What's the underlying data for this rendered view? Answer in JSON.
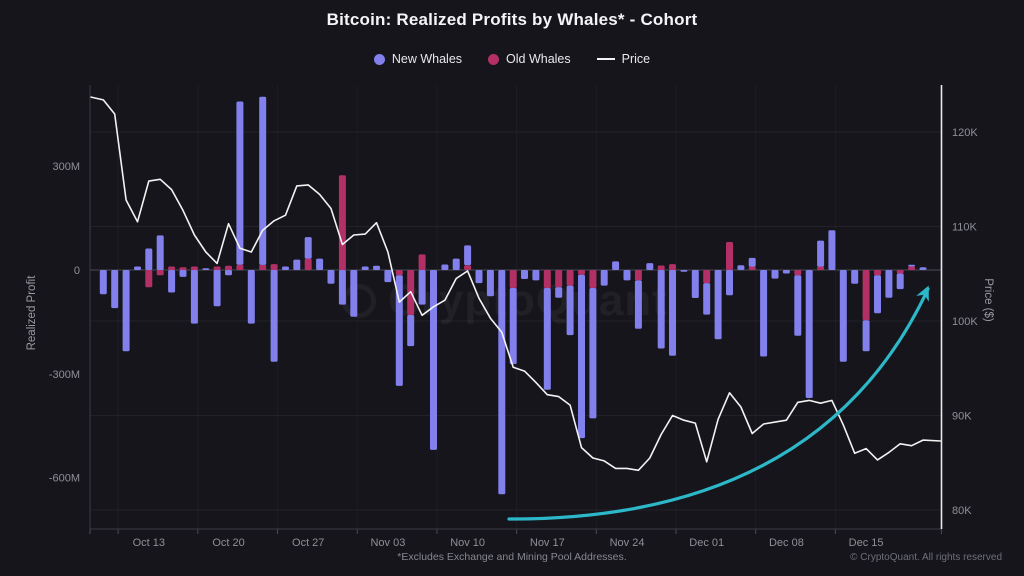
{
  "title": "Bitcoin: Realized Profits by Whales* - Cohort",
  "watermark": "CryptoQuant",
  "footnote": "*Excludes Exchange and Mining Pool Addresses.",
  "copyright": "© CryptoQuant. All rights reserved",
  "legend": {
    "items": [
      {
        "label": "New Whales",
        "color": "#8280ec",
        "type": "circle"
      },
      {
        "label": "Old Whales",
        "color": "#b23066",
        "type": "circle"
      },
      {
        "label": "Price",
        "color": "#f2f2f2",
        "type": "line"
      }
    ]
  },
  "colors": {
    "background": "#15151b",
    "new_whales": "#8280ec",
    "old_whales": "#b23066",
    "price_line": "#f2f2f2",
    "annotation_arrow": "#2cb8c8",
    "right_axis_line": "#e6e6ec",
    "axis_line": "#3a3a44",
    "zero_line": "#4a4a54",
    "tick_text": "#8f8f97",
    "gridline": "rgba(255,255,255,0.055)"
  },
  "chart_data": {
    "type": "bar+line",
    "title": "Bitcoin: Realized Profits by Whales* - Cohort",
    "units": {
      "bars": "USD (M = millions)",
      "line": "USD (K = thousands)"
    },
    "stack_order": "old-whales-nearest-zero",
    "grid": "horizontal-faint",
    "legend_position": "top-center",
    "y_left": {
      "label": "Realized Profit",
      "tick_labels": [
        "300M",
        "0",
        "-300M",
        "-600M"
      ],
      "tick_values": [
        300,
        0,
        -300,
        -600
      ],
      "range": [
        -720,
        560
      ]
    },
    "y_right": {
      "label": "Price ($)",
      "tick_labels": [
        "120K",
        "110K",
        "100K",
        "90K",
        "80K"
      ],
      "tick_values": [
        120,
        110,
        100,
        90,
        80
      ],
      "range": [
        78,
        125
      ]
    },
    "x_ticks": {
      "labels": [
        "Oct 13",
        "Oct 20",
        "Oct 27",
        "Nov 03",
        "Nov 10",
        "Nov 17",
        "Nov 24",
        "Dec 01",
        "Dec 08",
        "Dec 15"
      ],
      "day_indices": [
        4,
        11,
        18,
        25,
        32,
        39,
        46,
        53,
        60,
        67
      ]
    },
    "dates": [
      "Oct 09",
      "Oct 10",
      "Oct 11",
      "Oct 12",
      "Oct 13",
      "Oct 14",
      "Oct 15",
      "Oct 16",
      "Oct 17",
      "Oct 18",
      "Oct 19",
      "Oct 20",
      "Oct 21",
      "Oct 22",
      "Oct 23",
      "Oct 24",
      "Oct 25",
      "Oct 26",
      "Oct 27",
      "Oct 28",
      "Oct 29",
      "Oct 30",
      "Oct 31",
      "Nov 01",
      "Nov 02",
      "Nov 03",
      "Nov 04",
      "Nov 05",
      "Nov 06",
      "Nov 07",
      "Nov 08",
      "Nov 09",
      "Nov 10",
      "Nov 11",
      "Nov 12",
      "Nov 13",
      "Nov 14",
      "Nov 15",
      "Nov 16",
      "Nov 17",
      "Nov 18",
      "Nov 19",
      "Nov 20",
      "Nov 21",
      "Nov 22",
      "Nov 23",
      "Nov 24",
      "Nov 25",
      "Nov 26",
      "Nov 27",
      "Nov 28",
      "Nov 29",
      "Nov 30",
      "Dec 01",
      "Dec 02",
      "Dec 03",
      "Dec 04",
      "Dec 05",
      "Dec 06",
      "Dec 07",
      "Dec 08",
      "Dec 09",
      "Dec 10",
      "Dec 11",
      "Dec 12",
      "Dec 13",
      "Dec 14",
      "Dec 15",
      "Dec 16",
      "Dec 17",
      "Dec 18",
      "Dec 19",
      "Dec 20"
    ],
    "series": [
      {
        "name": "New Whales",
        "type": "bar",
        "axis": "left",
        "color": "#8280ec",
        "values": [
          -70,
          -110,
          -235,
          10,
          62,
          100,
          -65,
          -20,
          -155,
          5,
          -105,
          -15,
          472,
          -155,
          486,
          -265,
          10,
          30,
          62,
          33,
          -40,
          -100,
          -135,
          10,
          12,
          -35,
          -320,
          -90,
          -100,
          -520,
          16,
          33,
          57,
          -38,
          -76,
          -648,
          -220,
          -26,
          -30,
          -294,
          -30,
          -143,
          -472,
          -377,
          -45,
          25,
          -30,
          -140,
          20,
          -227,
          -248,
          -5,
          -81,
          -91,
          -200,
          -73,
          14,
          25,
          -250,
          -25,
          -10,
          -175,
          -370,
          75,
          115,
          -265,
          -40,
          -90,
          -110,
          -80,
          -45,
          5,
          8
        ]
      },
      {
        "name": "Old Whales",
        "type": "bar",
        "axis": "left",
        "color": "#b23066",
        "values": [
          0,
          0,
          0,
          0,
          -50,
          -15,
          10,
          8,
          10,
          0,
          10,
          12,
          15,
          0,
          15,
          17,
          0,
          0,
          33,
          0,
          0,
          274,
          0,
          0,
          0,
          0,
          -15,
          -130,
          45,
          0,
          0,
          0,
          14,
          0,
          0,
          0,
          -52,
          0,
          0,
          -52,
          -50,
          -45,
          -14,
          -52,
          0,
          0,
          0,
          -30,
          0,
          13,
          17,
          0,
          0,
          -38,
          0,
          81,
          0,
          10,
          0,
          0,
          0,
          -15,
          0,
          10,
          0,
          0,
          0,
          -145,
          -15,
          0,
          -10,
          10,
          0
        ]
      },
      {
        "name": "Price",
        "type": "line",
        "axis": "right",
        "color": "#f2f2f2",
        "values": [
          123.4,
          121.9,
          112.8,
          110.5,
          114.8,
          115.0,
          113.9,
          111.7,
          109.1,
          107.3,
          106.1,
          110.3,
          107.7,
          107.3,
          109.6,
          110.6,
          111.2,
          114.3,
          114.4,
          113.4,
          111.9,
          108.1,
          109.1,
          109.2,
          110.4,
          107.3,
          102.0,
          103.1,
          100.6,
          101.5,
          102.2,
          104.5,
          105.3,
          102.4,
          100.3,
          98.8,
          95.1,
          94.7,
          93.5,
          92.2,
          92.0,
          91.1,
          86.6,
          85.5,
          85.2,
          84.4,
          84.4,
          84.2,
          85.5,
          88.0,
          90.0,
          89.5,
          89.2,
          85.1,
          89.6,
          92.4,
          90.9,
          88.1,
          89.1,
          89.3,
          89.5,
          91.4,
          91.6,
          91.3,
          91.6,
          89.0,
          86.0,
          86.5,
          85.3,
          86.1,
          87.0,
          86.8,
          87.4
        ]
      }
    ],
    "annotation": {
      "type": "arrow",
      "color": "#2cb8c8",
      "description": "Upward-curving exponential arrow drawn over the price trough, pointing up-right near the last bars"
    }
  }
}
